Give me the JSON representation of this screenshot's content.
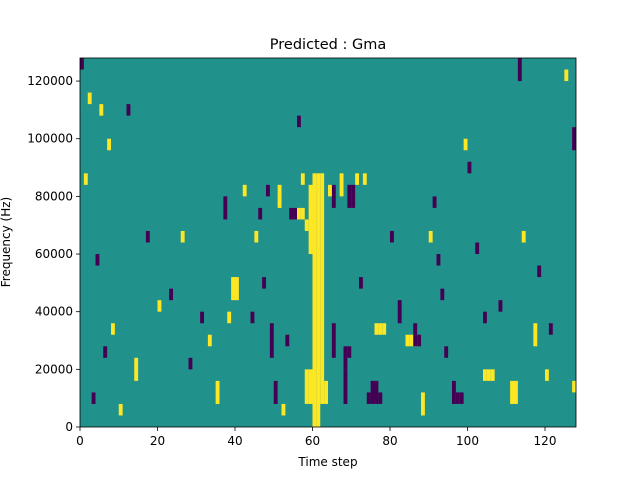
{
  "chart_data": {
    "type": "heatmap",
    "title": "Predicted : Gma",
    "xlabel": "Time step",
    "ylabel": "Frequency (Hz)",
    "xlim": [
      0,
      128
    ],
    "ylim": [
      0,
      128000
    ],
    "x_ticks": [
      0,
      20,
      40,
      60,
      80,
      100,
      120
    ],
    "y_ticks": [
      0,
      20000,
      40000,
      60000,
      80000,
      100000,
      120000
    ],
    "grid": false,
    "colorbar": false,
    "bins": {
      "time_steps": 128,
      "freq_bins": 32,
      "freq_bin_width": 4000
    },
    "colormap": {
      "low": "#440154",
      "mid": "#21918c",
      "high": "#fde725"
    },
    "background_value": "mid",
    "notes": "Values are discrete: low (dark purple), mid (teal background), high (yellow). Only non-background cells listed. Approximate readout.",
    "cells": [
      {
        "t": 60,
        "f_lo": 0,
        "f_hi": 88000,
        "v": "high"
      },
      {
        "t": 61,
        "f_lo": 0,
        "f_hi": 88000,
        "v": "high"
      },
      {
        "t": 62,
        "f_lo": 8000,
        "f_hi": 88000,
        "v": "high"
      },
      {
        "t": 59,
        "f_lo": 60000,
        "f_hi": 84000,
        "v": "high"
      },
      {
        "t": 58,
        "f_lo": 8000,
        "f_hi": 20000,
        "v": "high"
      },
      {
        "t": 59,
        "f_lo": 8000,
        "f_hi": 20000,
        "v": "high"
      },
      {
        "t": 63,
        "f_lo": 8000,
        "f_hi": 16000,
        "v": "high"
      },
      {
        "t": 40,
        "f_lo": 44000,
        "f_hi": 52000,
        "v": "high"
      },
      {
        "t": 39,
        "f_lo": 44000,
        "f_hi": 52000,
        "v": "high"
      },
      {
        "t": 54,
        "f_lo": 72000,
        "f_hi": 76000,
        "v": "low"
      },
      {
        "t": 55,
        "f_lo": 72000,
        "f_hi": 76000,
        "v": "low"
      },
      {
        "t": 56,
        "f_lo": 72000,
        "f_hi": 76000,
        "v": "high"
      },
      {
        "t": 57,
        "f_lo": 72000,
        "f_hi": 76000,
        "v": "high"
      },
      {
        "t": 58,
        "f_lo": 68000,
        "f_hi": 72000,
        "v": "high"
      },
      {
        "t": 76,
        "f_lo": 32000,
        "f_hi": 36000,
        "v": "high"
      },
      {
        "t": 77,
        "f_lo": 32000,
        "f_hi": 36000,
        "v": "high"
      },
      {
        "t": 78,
        "f_lo": 32000,
        "f_hi": 36000,
        "v": "high"
      },
      {
        "t": 84,
        "f_lo": 28000,
        "f_hi": 32000,
        "v": "high"
      },
      {
        "t": 85,
        "f_lo": 28000,
        "f_hi": 32000,
        "v": "high"
      },
      {
        "t": 86,
        "f_lo": 28000,
        "f_hi": 32000,
        "v": "high"
      },
      {
        "t": 75,
        "f_lo": 8000,
        "f_hi": 16000,
        "v": "low"
      },
      {
        "t": 76,
        "f_lo": 8000,
        "f_hi": 16000,
        "v": "low"
      },
      {
        "t": 74,
        "f_lo": 8000,
        "f_hi": 12000,
        "v": "low"
      },
      {
        "t": 77,
        "f_lo": 8000,
        "f_hi": 12000,
        "v": "low"
      },
      {
        "t": 65,
        "f_lo": 24000,
        "f_hi": 36000,
        "v": "low"
      },
      {
        "t": 68,
        "f_lo": 8000,
        "f_hi": 20000,
        "v": "low"
      },
      {
        "t": 68,
        "f_lo": 20000,
        "f_hi": 28000,
        "v": "low"
      },
      {
        "t": 69,
        "f_lo": 24000,
        "f_hi": 28000,
        "v": "low"
      },
      {
        "t": 69,
        "f_lo": 76000,
        "f_hi": 84000,
        "v": "low"
      },
      {
        "t": 70,
        "f_lo": 76000,
        "f_hi": 84000,
        "v": "low"
      },
      {
        "t": 65,
        "f_lo": 76000,
        "f_hi": 84000,
        "v": "low"
      },
      {
        "t": 64,
        "f_lo": 80000,
        "f_hi": 84000,
        "v": "high"
      },
      {
        "t": 67,
        "f_lo": 80000,
        "f_hi": 88000,
        "v": "high"
      },
      {
        "t": 71,
        "f_lo": 84000,
        "f_hi": 88000,
        "v": "high"
      },
      {
        "t": 73,
        "f_lo": 84000,
        "f_hi": 88000,
        "v": "high"
      },
      {
        "t": 46,
        "f_lo": 72000,
        "f_hi": 76000,
        "v": "low"
      },
      {
        "t": 48,
        "f_lo": 80000,
        "f_hi": 84000,
        "v": "low"
      },
      {
        "t": 51,
        "f_lo": 76000,
        "f_hi": 84000,
        "v": "high"
      },
      {
        "t": 57,
        "f_lo": 84000,
        "f_hi": 88000,
        "v": "high"
      },
      {
        "t": 111,
        "f_lo": 8000,
        "f_hi": 16000,
        "v": "high"
      },
      {
        "t": 112,
        "f_lo": 8000,
        "f_hi": 16000,
        "v": "high"
      },
      {
        "t": 104,
        "f_lo": 16000,
        "f_hi": 20000,
        "v": "high"
      },
      {
        "t": 105,
        "f_lo": 16000,
        "f_hi": 20000,
        "v": "high"
      },
      {
        "t": 106,
        "f_lo": 16000,
        "f_hi": 20000,
        "v": "high"
      },
      {
        "t": 86,
        "f_lo": 28000,
        "f_hi": 36000,
        "v": "low"
      },
      {
        "t": 87,
        "f_lo": 28000,
        "f_hi": 32000,
        "v": "low"
      },
      {
        "t": 94,
        "f_lo": 24000,
        "f_hi": 28000,
        "v": "low"
      },
      {
        "t": 96,
        "f_lo": 8000,
        "f_hi": 16000,
        "v": "low"
      },
      {
        "t": 97,
        "f_lo": 8000,
        "f_hi": 12000,
        "v": "low"
      },
      {
        "t": 98,
        "f_lo": 8000,
        "f_hi": 12000,
        "v": "low"
      },
      {
        "t": 0,
        "f_lo": 124000,
        "f_hi": 128000,
        "v": "low"
      },
      {
        "t": 2,
        "f_lo": 112000,
        "f_hi": 116000,
        "v": "high"
      },
      {
        "t": 5,
        "f_lo": 108000,
        "f_hi": 112000,
        "v": "high"
      },
      {
        "t": 1,
        "f_lo": 84000,
        "f_hi": 88000,
        "v": "high"
      },
      {
        "t": 7,
        "f_lo": 96000,
        "f_hi": 100000,
        "v": "high"
      },
      {
        "t": 8,
        "f_lo": 32000,
        "f_hi": 36000,
        "v": "high"
      },
      {
        "t": 10,
        "f_lo": 4000,
        "f_hi": 8000,
        "v": "high"
      },
      {
        "t": 14,
        "f_lo": 16000,
        "f_hi": 24000,
        "v": "high"
      },
      {
        "t": 20,
        "f_lo": 40000,
        "f_hi": 44000,
        "v": "high"
      },
      {
        "t": 26,
        "f_lo": 64000,
        "f_hi": 68000,
        "v": "high"
      },
      {
        "t": 33,
        "f_lo": 28000,
        "f_hi": 32000,
        "v": "high"
      },
      {
        "t": 35,
        "f_lo": 8000,
        "f_hi": 16000,
        "v": "high"
      },
      {
        "t": 38,
        "f_lo": 36000,
        "f_hi": 40000,
        "v": "high"
      },
      {
        "t": 42,
        "f_lo": 80000,
        "f_hi": 84000,
        "v": "high"
      },
      {
        "t": 45,
        "f_lo": 64000,
        "f_hi": 68000,
        "v": "high"
      },
      {
        "t": 52,
        "f_lo": 4000,
        "f_hi": 8000,
        "v": "high"
      },
      {
        "t": 88,
        "f_lo": 4000,
        "f_hi": 12000,
        "v": "high"
      },
      {
        "t": 90,
        "f_lo": 64000,
        "f_hi": 68000,
        "v": "high"
      },
      {
        "t": 99,
        "f_lo": 96000,
        "f_hi": 100000,
        "v": "high"
      },
      {
        "t": 114,
        "f_lo": 64000,
        "f_hi": 68000,
        "v": "high"
      },
      {
        "t": 117,
        "f_lo": 28000,
        "f_hi": 36000,
        "v": "high"
      },
      {
        "t": 120,
        "f_lo": 16000,
        "f_hi": 20000,
        "v": "high"
      },
      {
        "t": 127,
        "f_lo": 12000,
        "f_hi": 16000,
        "v": "high"
      },
      {
        "t": 127,
        "f_lo": 96000,
        "f_hi": 104000,
        "v": "low"
      },
      {
        "t": 125,
        "f_lo": 120000,
        "f_hi": 124000,
        "v": "high"
      },
      {
        "t": 113,
        "f_lo": 120000,
        "f_hi": 128000,
        "v": "low"
      },
      {
        "t": 100,
        "f_lo": 88000,
        "f_hi": 92000,
        "v": "low"
      },
      {
        "t": 92,
        "f_lo": 56000,
        "f_hi": 60000,
        "v": "low"
      },
      {
        "t": 93,
        "f_lo": 44000,
        "f_hi": 48000,
        "v": "low"
      },
      {
        "t": 104,
        "f_lo": 36000,
        "f_hi": 40000,
        "v": "low"
      },
      {
        "t": 108,
        "f_lo": 40000,
        "f_hi": 44000,
        "v": "low"
      },
      {
        "t": 121,
        "f_lo": 32000,
        "f_hi": 36000,
        "v": "low"
      },
      {
        "t": 118,
        "f_lo": 52000,
        "f_hi": 56000,
        "v": "low"
      },
      {
        "t": 23,
        "f_lo": 44000,
        "f_hi": 48000,
        "v": "low"
      },
      {
        "t": 17,
        "f_lo": 64000,
        "f_hi": 68000,
        "v": "low"
      },
      {
        "t": 12,
        "f_lo": 108000,
        "f_hi": 112000,
        "v": "low"
      },
      {
        "t": 4,
        "f_lo": 56000,
        "f_hi": 60000,
        "v": "low"
      },
      {
        "t": 6,
        "f_lo": 24000,
        "f_hi": 28000,
        "v": "low"
      },
      {
        "t": 3,
        "f_lo": 8000,
        "f_hi": 12000,
        "v": "low"
      },
      {
        "t": 28,
        "f_lo": 20000,
        "f_hi": 24000,
        "v": "low"
      },
      {
        "t": 31,
        "f_lo": 36000,
        "f_hi": 40000,
        "v": "low"
      },
      {
        "t": 37,
        "f_lo": 72000,
        "f_hi": 80000,
        "v": "low"
      },
      {
        "t": 44,
        "f_lo": 36000,
        "f_hi": 40000,
        "v": "low"
      },
      {
        "t": 47,
        "f_lo": 48000,
        "f_hi": 52000,
        "v": "low"
      },
      {
        "t": 49,
        "f_lo": 24000,
        "f_hi": 36000,
        "v": "low"
      },
      {
        "t": 50,
        "f_lo": 8000,
        "f_hi": 16000,
        "v": "low"
      },
      {
        "t": 53,
        "f_lo": 28000,
        "f_hi": 32000,
        "v": "low"
      },
      {
        "t": 56,
        "f_lo": 104000,
        "f_hi": 108000,
        "v": "low"
      },
      {
        "t": 72,
        "f_lo": 48000,
        "f_hi": 52000,
        "v": "low"
      },
      {
        "t": 80,
        "f_lo": 64000,
        "f_hi": 68000,
        "v": "low"
      },
      {
        "t": 82,
        "f_lo": 36000,
        "f_hi": 44000,
        "v": "low"
      },
      {
        "t": 91,
        "f_lo": 76000,
        "f_hi": 80000,
        "v": "low"
      },
      {
        "t": 102,
        "f_lo": 60000,
        "f_hi": 64000,
        "v": "low"
      }
    ]
  }
}
